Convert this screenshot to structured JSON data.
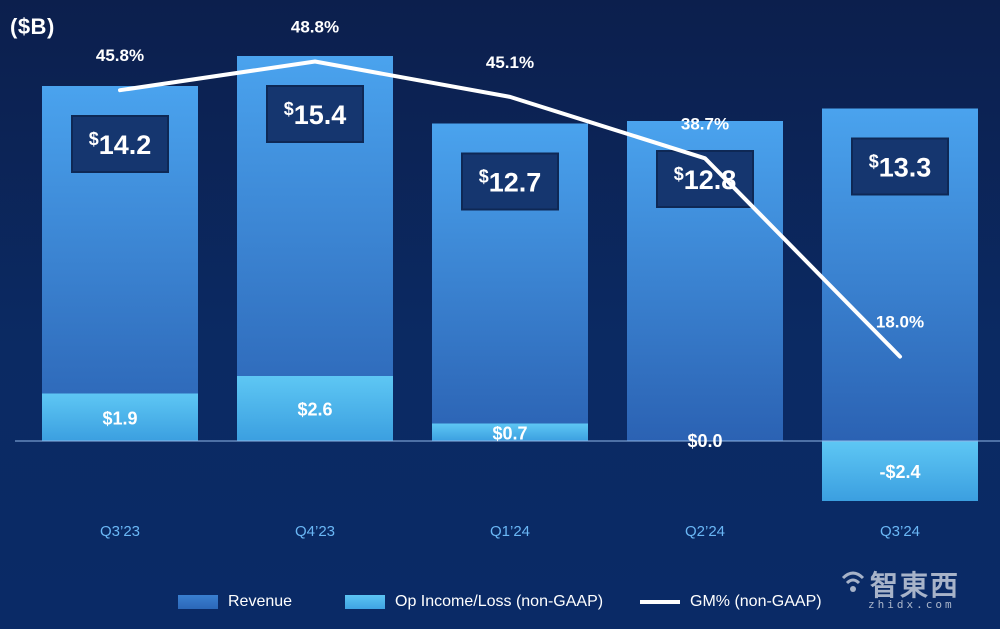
{
  "unit_label": "($B)",
  "colors": {
    "background": "#0b2a63",
    "revenue_bar_top": "#4aa3ee",
    "revenue_bar_bottom": "#2b62b3",
    "op_bar": "#4fb8f0",
    "label_box": "#15366f",
    "line": "#ffffff",
    "category_text": "#6ab7f5"
  },
  "chart_data": {
    "type": "bar",
    "categories": [
      "Q3’23",
      "Q4’23",
      "Q1’24",
      "Q2’24",
      "Q3’24"
    ],
    "series": [
      {
        "name": "Revenue",
        "type": "bar",
        "values": [
          14.2,
          15.4,
          12.7,
          12.8,
          13.3
        ],
        "labels": [
          "14.2",
          "15.4",
          "12.7",
          "12.8",
          "13.3"
        ],
        "label_prefix": "$"
      },
      {
        "name": "Op Income/Loss (non-GAAP)",
        "type": "bar",
        "values": [
          1.9,
          2.6,
          0.7,
          0.0,
          -2.4
        ],
        "labels": [
          "$1.9",
          "$2.6",
          "$0.7",
          "$0.0",
          "-$2.4"
        ]
      },
      {
        "name": "GM% (non-GAAP)",
        "type": "line",
        "values": [
          45.8,
          48.8,
          45.1,
          38.7,
          18.0
        ],
        "labels": [
          "45.8%",
          "48.8%",
          "45.1%",
          "38.7%",
          "18.0%"
        ]
      }
    ],
    "ylabel": "($B)",
    "ylim": [
      -2.8,
      16.5
    ],
    "gm_ylim": [
      0,
      60
    ],
    "legend_position": "bottom"
  },
  "legend": {
    "revenue": "Revenue",
    "op_income": "Op Income/Loss (non-GAAP)",
    "gm": "GM% (non-GAAP)"
  },
  "watermark": {
    "cn": "智東西",
    "en": "zhidx.com"
  }
}
